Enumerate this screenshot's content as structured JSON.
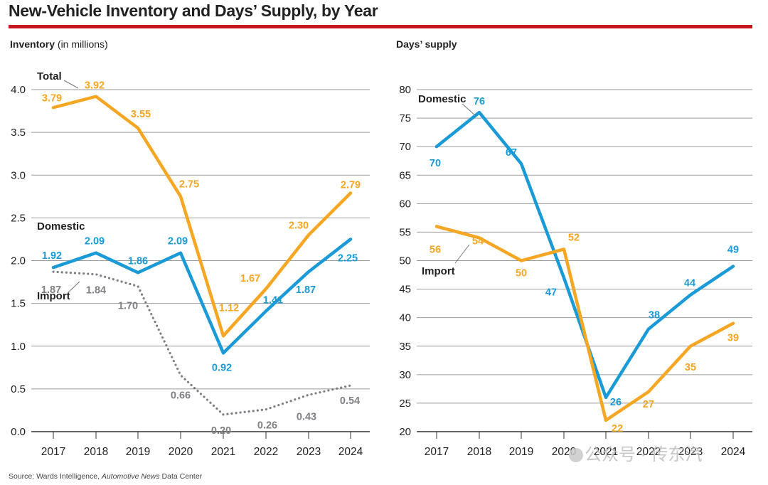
{
  "title": "New-Vehicle Inventory and Days’ Supply, by Year",
  "source": {
    "prefix": "Source: Wards Intelligence, ",
    "italic": "Automotive News",
    "suffix": " Data Center"
  },
  "watermark": "公众号 · 传东汽",
  "colors": {
    "total": "#f5a623",
    "domestic": "#1a9ad6",
    "import": "#7f7f86",
    "red": "#c4161c",
    "grid": "#9a9a9a"
  },
  "chart_data": [
    {
      "type": "line",
      "panel_label": "Inventory",
      "panel_label_unit": "(in millions)",
      "categories": [
        "2017",
        "2018",
        "2019",
        "2020",
        "2021",
        "2022",
        "2023",
        "2024"
      ],
      "ylim": [
        0,
        4.0
      ],
      "yticks": [
        "0.0",
        "0.5",
        "1.0",
        "1.5",
        "2.0",
        "2.5",
        "3.0",
        "3.5",
        "4.0"
      ],
      "series": [
        {
          "name": "Total",
          "key": "total",
          "style": "solid",
          "values": [
            3.79,
            3.92,
            3.55,
            2.75,
            1.12,
            1.67,
            2.3,
            2.79
          ],
          "labels": [
            "3.79",
            "3.92",
            "3.55",
            "2.75",
            "1.12",
            "1.67",
            "2.30",
            "2.79"
          ]
        },
        {
          "name": "Domestic",
          "key": "domestic",
          "style": "solid",
          "values": [
            1.92,
            2.09,
            1.86,
            2.09,
            0.92,
            1.41,
            1.87,
            2.25
          ],
          "labels": [
            "1.92",
            "2.09",
            "1.86",
            "2.09",
            "0.92",
            "1.41",
            "1.87",
            "2.25"
          ]
        },
        {
          "name": "Import",
          "key": "import",
          "style": "dotted",
          "values": [
            1.87,
            1.84,
            1.7,
            0.66,
            0.2,
            0.26,
            0.43,
            0.54
          ],
          "labels": [
            "1.87",
            "1.84",
            "1.70",
            "0.66",
            "0.20",
            "0.26",
            "0.43",
            "0.54"
          ]
        }
      ]
    },
    {
      "type": "line",
      "panel_label": "Days’ supply",
      "panel_label_unit": "",
      "categories": [
        "2017",
        "2018",
        "2019",
        "2020",
        "2021",
        "2022",
        "2023",
        "2024"
      ],
      "ylim": [
        20,
        80
      ],
      "yticks": [
        "20",
        "25",
        "30",
        "35",
        "40",
        "45",
        "50",
        "55",
        "60",
        "65",
        "70",
        "75",
        "80"
      ],
      "series": [
        {
          "name": "Domestic",
          "key": "domestic",
          "style": "solid",
          "values": [
            70,
            76,
            67,
            47,
            26,
            38,
            44,
            49
          ],
          "labels": [
            "70",
            "76",
            "67",
            "47",
            "26",
            "38",
            "44",
            "49"
          ]
        },
        {
          "name": "Import",
          "key": "total",
          "style": "solid",
          "values": [
            56,
            54,
            50,
            52,
            22,
            27,
            35,
            39
          ],
          "labels": [
            "56",
            "54",
            "50",
            "52",
            "22",
            "27",
            "35",
            "39"
          ]
        }
      ]
    }
  ]
}
